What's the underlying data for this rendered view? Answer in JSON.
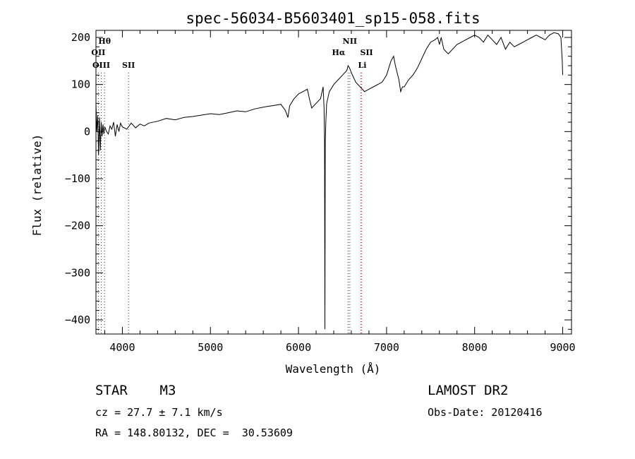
{
  "chart_data": {
    "type": "line",
    "title": "spec-56034-B5603401_sp15-058.fits",
    "xlabel": "Wavelength (Å)",
    "ylabel": "Flux (relative)",
    "xlim": [
      3700,
      9100
    ],
    "ylim": [
      -430,
      215
    ],
    "xticks": [
      4000,
      5000,
      6000,
      7000,
      8000,
      9000
    ],
    "yticks": [
      -400,
      -300,
      -200,
      -100,
      0,
      100,
      200
    ],
    "ytick_labels": [
      "−400",
      "−300",
      "−200",
      "−100",
      "0",
      "100",
      "200"
    ],
    "grid": false,
    "series": [
      {
        "x": [
          3700,
          3710,
          3720,
          3730,
          3740,
          3750,
          3760,
          3770,
          3780,
          3790,
          3800,
          3820,
          3840,
          3860,
          3880,
          3900,
          3920,
          3940,
          3960,
          3980,
          4000,
          4050,
          4100,
          4150,
          4200,
          4250,
          4300,
          4400,
          4500,
          4600,
          4700,
          4800,
          4900,
          5000,
          5100,
          5200,
          5300,
          5400,
          5500,
          5600,
          5700,
          5800,
          5850,
          5880,
          5900,
          5950,
          6000,
          6050,
          6100,
          6130,
          6150,
          6200,
          6250,
          6280,
          6290,
          6296,
          6300,
          6304,
          6310,
          6320,
          6350,
          6400,
          6450,
          6500,
          6550,
          6563,
          6580,
          6600,
          6650,
          6700,
          6750,
          6800,
          6850,
          6900,
          6950,
          7000,
          7050,
          7080,
          7100,
          7140,
          7160,
          7180,
          7200,
          7250,
          7300,
          7350,
          7400,
          7450,
          7500,
          7550,
          7580,
          7600,
          7620,
          7650,
          7700,
          7750,
          7800,
          7850,
          7900,
          7950,
          8000,
          8050,
          8100,
          8150,
          8200,
          8250,
          8300,
          8350,
          8400,
          8450,
          8500,
          8550,
          8600,
          8650,
          8700,
          8750,
          8800,
          8850,
          8900,
          8950,
          8980,
          8995,
          9000
        ],
        "y": [
          60,
          0,
          35,
          -50,
          30,
          -40,
          20,
          -10,
          15,
          -5,
          10,
          0,
          -5,
          12,
          5,
          20,
          -10,
          15,
          0,
          18,
          10,
          5,
          18,
          8,
          16,
          12,
          18,
          22,
          28,
          25,
          30,
          32,
          35,
          38,
          36,
          40,
          44,
          42,
          48,
          52,
          55,
          58,
          45,
          30,
          55,
          70,
          80,
          85,
          90,
          65,
          50,
          60,
          70,
          95,
          50,
          -20,
          -420,
          -20,
          20,
          60,
          85,
          100,
          110,
          120,
          130,
          140,
          135,
          125,
          105,
          95,
          85,
          90,
          95,
          100,
          105,
          120,
          150,
          160,
          140,
          110,
          85,
          95,
          95,
          110,
          120,
          135,
          155,
          175,
          190,
          195,
          200,
          185,
          200,
          175,
          165,
          175,
          185,
          190,
          195,
          200,
          205,
          200,
          190,
          205,
          195,
          185,
          200,
          175,
          190,
          180,
          185,
          190,
          195,
          200,
          205,
          200,
          195,
          205,
          210,
          208,
          200,
          150,
          120
        ]
      }
    ],
    "annotations": [
      {
        "label": "Hθ",
        "x": 3798
      },
      {
        "label": "OII",
        "x": 3727
      },
      {
        "label": "OIII",
        "x": 3760
      },
      {
        "label": "SII",
        "x": 4070
      },
      {
        "label": "NII",
        "x": 6583
      },
      {
        "label": "Hα",
        "x": 6563
      },
      {
        "label": "SII",
        "x": 6716
      },
      {
        "label": "Li",
        "x": 6708
      }
    ]
  },
  "info": {
    "object": "STAR    M3",
    "survey": "LAMOST DR2",
    "cz": "cz = 27.7 ± 7.1 km/s",
    "obs_date": "Obs-Date: 20120416",
    "coords": "RA = 148.80132, DEC =  30.53609"
  },
  "colors": {
    "axis": "#000000",
    "line": "#000000",
    "line_marker_black": "#333333",
    "line_marker_red": "#cc3333"
  }
}
